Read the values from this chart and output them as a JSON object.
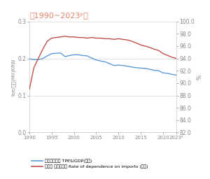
{
  "title": "〈1990~2023ᵖ〉",
  "title_color": "#e8836a",
  "ylabel_left": "toe/백만(Mil)KRW",
  "ylabel_right": "%",
  "xlim": [
    1990,
    2023
  ],
  "ylim_left": [
    0.0,
    0.3
  ],
  "ylim_right": [
    82.0,
    100.0
  ],
  "xticks": [
    1990,
    1995,
    2000,
    2005,
    2010,
    2015,
    2020,
    2023
  ],
  "yticks_left": [
    0.0,
    0.1,
    0.2,
    0.3
  ],
  "yticks_right": [
    82.0,
    84.0,
    86.0,
    88.0,
    90.0,
    92.0,
    94.0,
    96.0,
    98.0,
    100.0
  ],
  "blue_line_color": "#5b9bd5",
  "red_line_color": "#c0504d",
  "legend1": "에너지원단위 TPES/GDP(좌측)",
  "legend2": "에너지 수입의존도 Rate of dependence on imports (우측)",
  "blue_x": [
    1990,
    1991,
    1992,
    1993,
    1994,
    1995,
    1996,
    1997,
    1998,
    1999,
    2000,
    2001,
    2002,
    2003,
    2004,
    2005,
    2006,
    2007,
    2008,
    2009,
    2010,
    2011,
    2012,
    2013,
    2014,
    2015,
    2016,
    2017,
    2018,
    2019,
    2020,
    2021,
    2022,
    2023
  ],
  "blue_y": [
    0.199,
    0.197,
    0.197,
    0.2,
    0.207,
    0.213,
    0.214,
    0.215,
    0.205,
    0.208,
    0.21,
    0.21,
    0.208,
    0.207,
    0.201,
    0.196,
    0.193,
    0.191,
    0.186,
    0.181,
    0.182,
    0.181,
    0.179,
    0.177,
    0.175,
    0.174,
    0.173,
    0.171,
    0.168,
    0.167,
    0.161,
    0.16,
    0.157,
    0.155
  ],
  "red_x": [
    1990,
    1991,
    1992,
    1993,
    1994,
    1995,
    1996,
    1997,
    1998,
    1999,
    2000,
    2001,
    2002,
    2003,
    2004,
    2005,
    2006,
    2007,
    2008,
    2009,
    2010,
    2011,
    2012,
    2013,
    2014,
    2015,
    2016,
    2017,
    2018,
    2019,
    2020,
    2021,
    2022,
    2023
  ],
  "red_y": [
    89.0,
    92.5,
    94.0,
    95.5,
    96.8,
    97.3,
    97.4,
    97.5,
    97.6,
    97.5,
    97.5,
    97.4,
    97.4,
    97.3,
    97.4,
    97.3,
    97.3,
    97.2,
    97.2,
    97.1,
    97.2,
    97.1,
    97.0,
    96.8,
    96.5,
    96.2,
    96.0,
    95.8,
    95.5,
    95.3,
    94.8,
    94.5,
    94.2,
    94.0
  ],
  "background_color": "#ffffff",
  "spine_color": "#cccccc",
  "tick_color": "#888888",
  "label_color": "#888888"
}
